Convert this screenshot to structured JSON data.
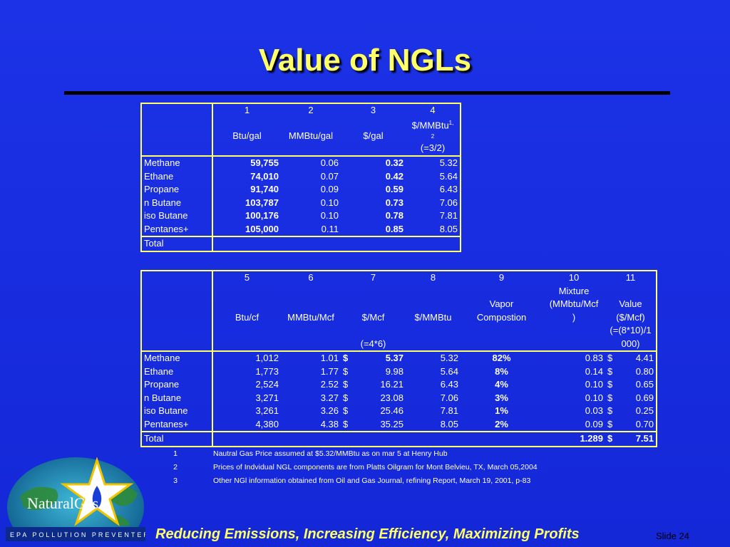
{
  "slide_title": "Value of NGLs",
  "table1": {
    "col_numbers": [
      "1",
      "2",
      "3",
      "4"
    ],
    "header_line1": "$/MMBtu",
    "header_sup": "1,",
    "header_sub": "2",
    "units": [
      "Btu/gal",
      "MMBtu/gal",
      "$/gal"
    ],
    "formula4": "(=3/2)",
    "rows": [
      {
        "name": "Methane",
        "btu_gal": "59,755",
        "mmbtu_gal": "0.06",
        "usd_gal": "0.32",
        "usd_mmbtu": "5.32"
      },
      {
        "name": "Ethane",
        "btu_gal": "74,010",
        "mmbtu_gal": "0.07",
        "usd_gal": "0.42",
        "usd_mmbtu": "5.64"
      },
      {
        "name": "Propane",
        "btu_gal": "91,740",
        "mmbtu_gal": "0.09",
        "usd_gal": "0.59",
        "usd_mmbtu": "6.43"
      },
      {
        "name": "n Butane",
        "btu_gal": "103,787",
        "mmbtu_gal": "0.10",
        "usd_gal": "0.73",
        "usd_mmbtu": "7.06"
      },
      {
        "name": "iso Butane",
        "btu_gal": "100,176",
        "mmbtu_gal": "0.10",
        "usd_gal": "0.78",
        "usd_mmbtu": "7.81"
      },
      {
        "name": "Pentanes+",
        "btu_gal": "105,000",
        "mmbtu_gal": "0.11",
        "usd_gal": "0.85",
        "usd_mmbtu": "8.05"
      }
    ],
    "total_label": "Total"
  },
  "table2": {
    "col_numbers": [
      "5",
      "6",
      "7",
      "8",
      "9",
      "10",
      "11"
    ],
    "h9": [
      "Vapor",
      "Compostion"
    ],
    "h10": [
      "Mixture",
      "(MMbtu/Mcf",
      ")"
    ],
    "h11": [
      "Value",
      "($/Mcf)",
      "(=(8*10)/1",
      "000)"
    ],
    "units": [
      "Btu/cf",
      "MMBtu/Mcf",
      "$/Mcf",
      "$/MMBtu"
    ],
    "formula7": "(=4*6)",
    "currency": "$",
    "rows": [
      {
        "name": "Methane",
        "btu_cf": "1,012",
        "mmbtu_mcf": "1.01",
        "usd_mcf": "5.37",
        "usd_mmbtu": "5.32",
        "vapor": "82%",
        "mixture": "0.83",
        "value": "4.41"
      },
      {
        "name": "Ethane",
        "btu_cf": "1,773",
        "mmbtu_mcf": "1.77",
        "usd_mcf": "9.98",
        "usd_mmbtu": "5.64",
        "vapor": "8%",
        "mixture": "0.14",
        "value": "0.80"
      },
      {
        "name": "Propane",
        "btu_cf": "2,524",
        "mmbtu_mcf": "2.52",
        "usd_mcf": "16.21",
        "usd_mmbtu": "6.43",
        "vapor": "4%",
        "mixture": "0.10",
        "value": "0.65"
      },
      {
        "name": "n Butane",
        "btu_cf": "3,271",
        "mmbtu_mcf": "3.27",
        "usd_mcf": "23.08",
        "usd_mmbtu": "7.06",
        "vapor": "3%",
        "mixture": "0.10",
        "value": "0.69"
      },
      {
        "name": "iso Butane",
        "btu_cf": "3,261",
        "mmbtu_mcf": "3.26",
        "usd_mcf": "25.46",
        "usd_mmbtu": "7.81",
        "vapor": "1%",
        "mixture": "0.03",
        "value": "0.25"
      },
      {
        "name": "Pentanes+",
        "btu_cf": "4,380",
        "mmbtu_mcf": "4.38",
        "usd_mcf": "35.25",
        "usd_mmbtu": "8.05",
        "vapor": "2%",
        "mixture": "0.09",
        "value": "0.70"
      }
    ],
    "total_label": "Total",
    "total_mixture": "1.289",
    "total_value": "7.51"
  },
  "footnotes": [
    {
      "num": "1",
      "text": "Nautral Gas Price assumed at $5.32/MMBtu as on mar 5 at Henry Hub"
    },
    {
      "num": "2",
      "text": "Prices of Indvidual NGL components are from Platts Oilgram for Mont Belvieu, TX, March 05,2004"
    },
    {
      "num": "3",
      "text": "Other NGl information obtained from Oil and Gas Journal, refining Report, March 19, 2001, p-83"
    }
  ],
  "logo": {
    "brand": "NaturalGas",
    "banner": "EPA POLLUTION PREVENTER"
  },
  "colors": {
    "background": "#1a2ee0",
    "title": "#ffff66",
    "border": "#ffff66",
    "footer": "#ffff66"
  },
  "footer_tagline": "Reducing Emissions, Increasing Efficiency, Maximizing Profits",
  "slide_number": "Slide 24"
}
